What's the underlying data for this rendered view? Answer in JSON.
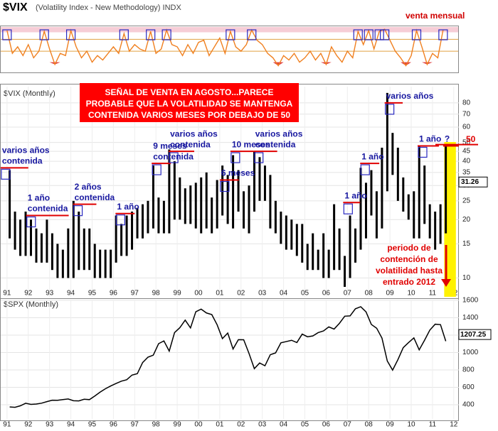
{
  "chart_data": [
    {
      "type": "line",
      "title": "$VIX",
      "subtitle": "(Volatility Index - New Methodology) INDX",
      "annotation": "venta mensual",
      "xlim": [
        1990.67,
        2012.24
      ],
      "ylim": [
        0,
        100
      ],
      "color": "#f08020",
      "levels": [
        72,
        45
      ],
      "band": 88,
      "floor": 20,
      "x0": 1991,
      "step": 0.25,
      "values": [
        92,
        40,
        55,
        35,
        60,
        30,
        45,
        90,
        50,
        15,
        40,
        35,
        92,
        55,
        30,
        45,
        20,
        35,
        25,
        40,
        55,
        40,
        85,
        45,
        60,
        50,
        45,
        90,
        40,
        50,
        93,
        60,
        55,
        35,
        60,
        40,
        65,
        70,
        35,
        55,
        75,
        40,
        90,
        55,
        45,
        60,
        93,
        70,
        60,
        40,
        30,
        12,
        35,
        25,
        40,
        20,
        30,
        45,
        25,
        40,
        15,
        55,
        35,
        20,
        45,
        30,
        90,
        60,
        92,
        50,
        90,
        95,
        70,
        45,
        30,
        12,
        35,
        92,
        55,
        15,
        40,
        30,
        94
      ],
      "signals": [
        1991.0,
        1992.75,
        1994.0,
        1996.5,
        1997.75,
        1998.5,
        2001.5,
        2002.5,
        2007.5,
        2008.0,
        2008.5,
        2008.75,
        2010.25,
        2011.5
      ]
    },
    {
      "type": "hilo",
      "label": "$VIX (Monthly)",
      "log": true,
      "xlim": [
        1990.67,
        2012.24
      ],
      "ylim": [
        8,
        97
      ],
      "color": "#000000",
      "yticks": [
        10,
        15,
        20,
        25,
        30,
        35,
        40,
        45,
        50,
        60,
        70,
        80
      ],
      "xticks": [
        {
          "value": 1991,
          "label": "91"
        },
        {
          "value": 1992,
          "label": "92"
        },
        {
          "value": 1993,
          "label": "93"
        },
        {
          "value": 1994,
          "label": "94"
        },
        {
          "value": 1995,
          "label": "95"
        },
        {
          "value": 1996,
          "label": "96"
        },
        {
          "value": 1997,
          "label": "97"
        },
        {
          "value": 1998,
          "label": "98"
        },
        {
          "value": 1999,
          "label": "99"
        },
        {
          "value": 2000,
          "label": "00"
        },
        {
          "value": 2001,
          "label": "01"
        },
        {
          "value": 2002,
          "label": "02"
        },
        {
          "value": 2003,
          "label": "03"
        },
        {
          "value": 2004,
          "label": "04"
        },
        {
          "value": 2005,
          "label": "05"
        },
        {
          "value": 2006,
          "label": "06"
        },
        {
          "value": 2007,
          "label": "07"
        },
        {
          "value": 2008,
          "label": "08"
        },
        {
          "value": 2009,
          "label": "09"
        },
        {
          "value": 2010,
          "label": "10"
        },
        {
          "value": 2011,
          "label": "11"
        },
        {
          "value": 2012,
          "label": "12"
        }
      ],
      "x0": 1991,
      "step": 0.25,
      "high": [
        36,
        22,
        20,
        22,
        20,
        18,
        17,
        20,
        17,
        15,
        14,
        18,
        25,
        22,
        18,
        18,
        15,
        14,
        14,
        14,
        21,
        19,
        21,
        22,
        23,
        24,
        25,
        38,
        26,
        25,
        46,
        40,
        33,
        29,
        30,
        31,
        33,
        35,
        26,
        32,
        38,
        34,
        43,
        36,
        28,
        30,
        45,
        42,
        38,
        34,
        25,
        22,
        21,
        20,
        19,
        19,
        15,
        17,
        14,
        17,
        14,
        24,
        18,
        13,
        21,
        18,
        37,
        31,
        36,
        28,
        47,
        90,
        56,
        47,
        33,
        27,
        28,
        48,
        38,
        24,
        22,
        24,
        48
      ],
      "low": [
        16,
        14,
        13,
        13,
        13,
        12,
        12,
        12,
        11,
        10,
        10,
        10,
        10,
        11,
        11,
        11,
        10,
        10,
        10,
        10,
        12,
        13,
        13,
        14,
        16,
        16,
        17,
        18,
        17,
        17,
        17,
        20,
        20,
        19,
        19,
        18,
        17,
        18,
        17,
        18,
        21,
        19,
        18,
        22,
        18,
        17,
        22,
        25,
        25,
        18,
        17,
        15,
        14,
        14,
        13,
        12,
        11,
        11,
        11,
        10,
        10,
        11,
        11,
        9,
        10,
        12,
        14,
        16,
        21,
        16,
        18,
        28,
        34,
        25,
        22,
        20,
        16,
        16,
        19,
        16,
        14,
        15,
        17
      ],
      "last_value": 31.26,
      "threshold": 50,
      "callout": [
        "SEÑAL DE VENTA EN AGOSTO...PARECE",
        "PROBABLE QUE LA VOLATILIDAD SE MANTENGA",
        "CONTENIDA VARIOS MESES POR DEBAJO DE 50"
      ],
      "highlight": [
        2011.55,
        2012.1
      ],
      "note": [
        "periodo de",
        "contención de",
        "volatilidad hasta",
        "entrado 2012"
      ],
      "annotations": [
        {
          "lines": [
            "varios años",
            "contenida"
          ],
          "level": 37,
          "x0": 1990.7,
          "x1": 1992.0
        },
        {
          "lines": [
            "1 año",
            "contenida"
          ],
          "level": 21,
          "x0": 1991.9,
          "x1": 1993.9
        },
        {
          "lines": [
            "2 años",
            "contenida"
          ],
          "level": 24,
          "x0": 1994.1,
          "x1": 1995.2
        },
        {
          "lines": [
            "1 año"
          ],
          "level": 21.5,
          "x0": 1996.1,
          "x1": 1997.0
        },
        {
          "lines": [
            "9 meses",
            "contenida"
          ],
          "level": 39,
          "x0": 1997.8,
          "x1": 1998.7
        },
        {
          "lines": [
            "varios años",
            "contenida"
          ],
          "level": 45,
          "x0": 1998.6,
          "x1": 1999.8
        },
        {
          "lines": [
            "6 meses"
          ],
          "level": 32,
          "x0": 2001.0,
          "x1": 2001.9
        },
        {
          "lines": [
            "10 meses"
          ],
          "level": 45,
          "x0": 2001.5,
          "x1": 2002.6
        },
        {
          "lines": [
            "varios años",
            "contenida"
          ],
          "level": 45,
          "x0": 2002.6,
          "x1": 2003.7
        },
        {
          "lines": [
            "1 año"
          ],
          "level": 24.5,
          "x0": 2006.8,
          "x1": 2007.6
        },
        {
          "lines": [
            "1 año"
          ],
          "level": 39,
          "x0": 2007.6,
          "x1": 2008.5
        },
        {
          "lines": [
            "varios años"
          ],
          "level": 80,
          "x0": 2008.75,
          "x1": 2009.6
        },
        {
          "lines": [
            "1 año"
          ],
          "level": 48,
          "x0": 2010.3,
          "x1": 2011.3
        },
        {
          "lines": [
            "?"
          ],
          "level": 48,
          "x0": 2011.5,
          "x1": 2012.24
        }
      ]
    },
    {
      "type": "line",
      "label": "$SPX (Monthly)",
      "xlim": [
        1990.67,
        2012.24
      ],
      "ylim": [
        237,
        1600
      ],
      "color": "#000000",
      "yticks": [
        400,
        600,
        800,
        1000,
        1200,
        1400,
        1600
      ],
      "xticks": [
        {
          "value": 1991,
          "label": "91"
        },
        {
          "value": 1992,
          "label": "92"
        },
        {
          "value": 1993,
          "label": "93"
        },
        {
          "value": 1994,
          "label": "94"
        },
        {
          "value": 1995,
          "label": "95"
        },
        {
          "value": 1996,
          "label": "96"
        },
        {
          "value": 1997,
          "label": "97"
        },
        {
          "value": 1998,
          "label": "98"
        },
        {
          "value": 1999,
          "label": "99"
        },
        {
          "value": 2000,
          "label": "00"
        },
        {
          "value": 2001,
          "label": "01"
        },
        {
          "value": 2002,
          "label": "02"
        },
        {
          "value": 2003,
          "label": "03"
        },
        {
          "value": 2004,
          "label": "04"
        },
        {
          "value": 2005,
          "label": "05"
        },
        {
          "value": 2006,
          "label": "06"
        },
        {
          "value": 2007,
          "label": "07"
        },
        {
          "value": 2008,
          "label": "08"
        },
        {
          "value": 2009,
          "label": "09"
        },
        {
          "value": 2010,
          "label": "10"
        },
        {
          "value": 2011,
          "label": "11"
        },
        {
          "value": 2012,
          "label": "12"
        }
      ],
      "x0": 1991,
      "step": 0.25,
      "values": [
        375,
        371,
        388,
        417,
        404,
        408,
        418,
        436,
        452,
        451,
        459,
        466,
        446,
        444,
        463,
        459,
        500,
        545,
        584,
        616,
        645,
        671,
        687,
        741,
        757,
        885,
        947,
        970,
        1102,
        1134,
        1017,
        1229,
        1286,
        1373,
        1283,
        1469,
        1499,
        1455,
        1437,
        1320,
        1160,
        1224,
        1041,
        1148,
        1147,
        990,
        815,
        880,
        848,
        975,
        996,
        1112,
        1126,
        1141,
        1115,
        1212,
        1181,
        1191,
        1229,
        1248,
        1295,
        1270,
        1336,
        1418,
        1421,
        1503,
        1527,
        1468,
        1323,
        1280,
        1166,
        903,
        798,
        919,
        1057,
        1115,
        1169,
        1031,
        1141,
        1258,
        1326,
        1321,
        1131
      ],
      "last_value": 1207.25
    }
  ]
}
